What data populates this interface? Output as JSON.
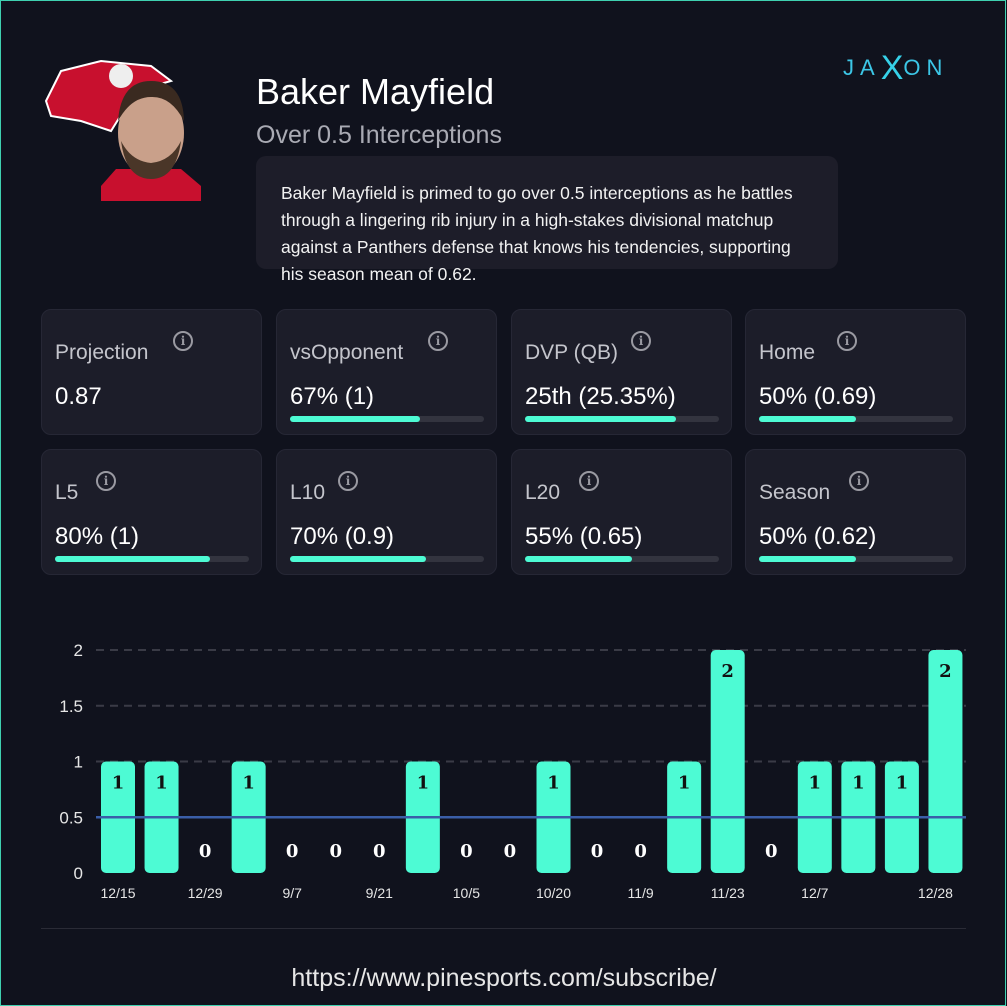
{
  "player": {
    "name": "Baker Mayfield",
    "prop": "Over 0.5 Interceptions",
    "blurb": "Baker Mayfield is primed to go over 0.5 interceptions as he battles through a lingering rib injury in a high-stakes divisional matchup against a Panthers defense that knows his tendencies, supporting his season mean of 0.62."
  },
  "brand": {
    "left": "JA",
    "mid": "X",
    "right": "ON"
  },
  "stats": [
    {
      "label": "Projection",
      "value": "0.87",
      "pct": null
    },
    {
      "label": "vsOpponent",
      "value": "67% (1)",
      "pct": 67
    },
    {
      "label": "DVP (QB)",
      "value": "25th (25.35%)",
      "pct": 78
    },
    {
      "label": "Home",
      "value": "50% (0.69)",
      "pct": 50
    },
    {
      "label": "L5",
      "value": "80% (1)",
      "pct": 80
    },
    {
      "label": "L10",
      "value": "70% (0.9)",
      "pct": 70
    },
    {
      "label": "L20",
      "value": "55% (0.65)",
      "pct": 55
    },
    {
      "label": "Season",
      "value": "50% (0.62)",
      "pct": 50
    }
  ],
  "colors": {
    "accent": "#4dfbd4",
    "line": "#3a5ea8",
    "bg": "#10121d",
    "card": "#1c1d29"
  },
  "chart_data": {
    "type": "bar",
    "values": [
      1,
      1,
      0,
      1,
      0,
      0,
      0,
      1,
      0,
      0,
      1,
      0,
      0,
      1,
      2,
      0,
      1,
      1,
      1,
      2
    ],
    "x_labels": [
      "12/15",
      "",
      "12/29",
      "",
      "9/7",
      "",
      "9/21",
      "",
      "10/5",
      "",
      "10/20",
      "",
      "11/9",
      "",
      "11/23",
      "",
      "12/7",
      "",
      "",
      "12/28"
    ],
    "yticks": [
      "0",
      "0.5",
      "1",
      "1.5",
      "2"
    ],
    "ylim": [
      0,
      2
    ],
    "reference_line": 0.5,
    "grid": true
  },
  "footer": {
    "url": "https://www.pinesports.com/subscribe/"
  }
}
